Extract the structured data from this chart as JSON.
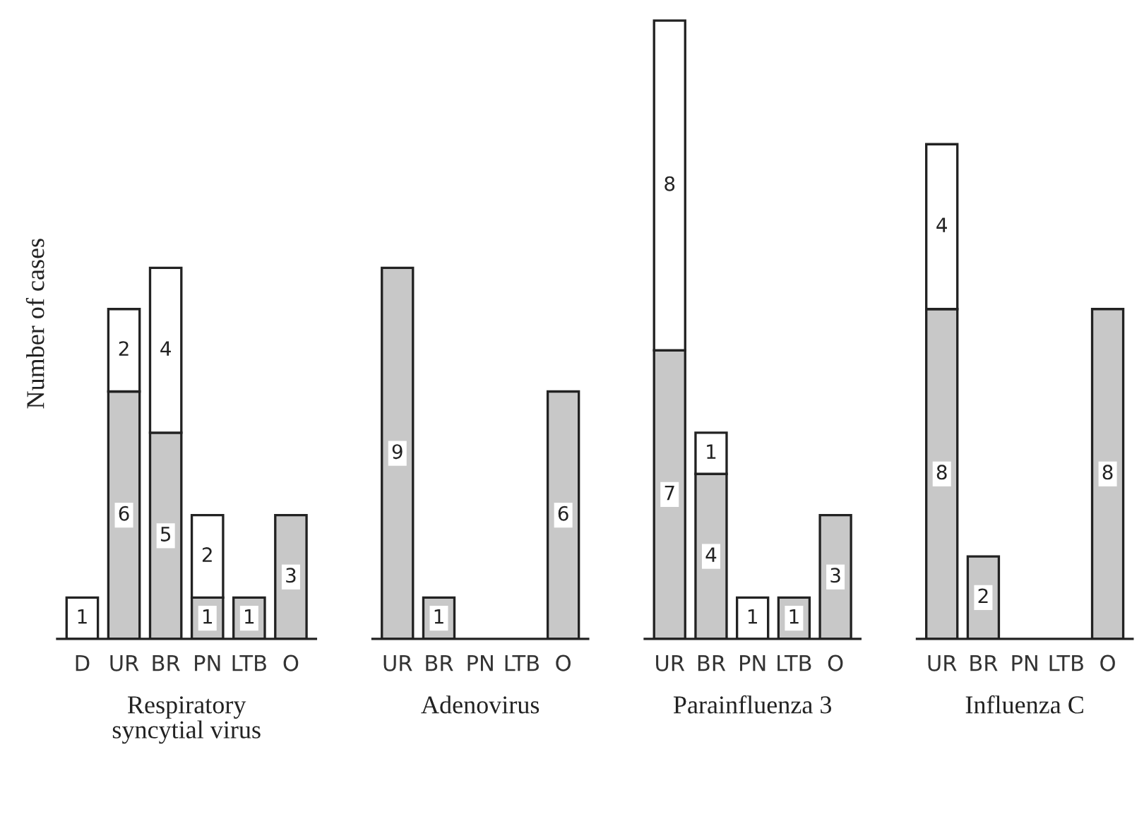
{
  "chart_data": [
    {
      "type": "bar",
      "stacked": true,
      "data_labels": true,
      "title": "Respiratory\nsyncytial virus",
      "ylabel": "Number of cases",
      "categories": [
        "D",
        "UR",
        "BR",
        "PN",
        "LTB",
        "O"
      ],
      "tick_labels": "x",
      "series": [
        {
          "color": "#c8c8c8",
          "values": [
            null,
            6,
            5,
            1,
            1,
            3
          ]
        },
        {
          "color": "#ffffff",
          "values": [
            1,
            2,
            4,
            2,
            null,
            null
          ]
        }
      ]
    },
    {
      "type": "bar",
      "stacked": true,
      "data_labels": true,
      "title": "Adenovirus",
      "categories": [
        "UR",
        "BR",
        "PN",
        "LTB",
        "O"
      ],
      "tick_labels": "x",
      "series": [
        {
          "color": "#c8c8c8",
          "values": [
            9,
            1,
            null,
            null,
            6
          ]
        }
      ]
    },
    {
      "type": "bar",
      "stacked": true,
      "data_labels": true,
      "title": "Parainfluenza 3",
      "categories": [
        "UR",
        "BR",
        "PN",
        "LTB",
        "O"
      ],
      "tick_labels": "x",
      "series": [
        {
          "color": "#c8c8c8",
          "values": [
            7,
            4,
            null,
            1,
            3
          ]
        },
        {
          "color": "#ffffff",
          "values": [
            8,
            1,
            1,
            null,
            null
          ]
        }
      ]
    },
    {
      "type": "bar",
      "stacked": true,
      "data_labels": true,
      "title": "Influenza C",
      "categories": [
        "UR",
        "BR",
        "PN",
        "LTB",
        "O"
      ],
      "tick_labels": "x",
      "series": [
        {
          "color": "#c8c8c8",
          "values": [
            8,
            2,
            null,
            null,
            8
          ]
        },
        {
          "color": "#ffffff",
          "values": [
            4,
            null,
            null,
            null,
            null
          ]
        }
      ]
    }
  ]
}
